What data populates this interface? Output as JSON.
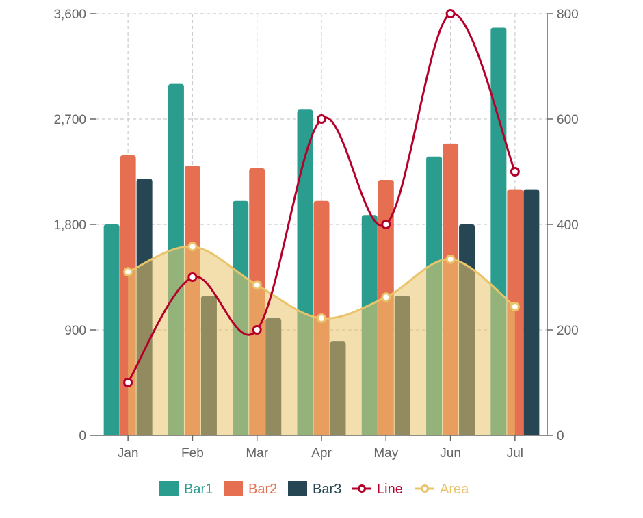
{
  "chart_data": {
    "type": "bar",
    "categories": [
      "Jan",
      "Feb",
      "Mar",
      "Apr",
      "May",
      "Jun",
      "Jul"
    ],
    "y_left": {
      "ticks": [
        0,
        900,
        1800,
        2700,
        3600
      ],
      "tick_labels": [
        "0",
        "900",
        "1,800",
        "2,700",
        "3,600"
      ],
      "min": 0,
      "max": 3600
    },
    "y_right": {
      "ticks": [
        0,
        200,
        400,
        600,
        800
      ],
      "tick_labels": [
        "0",
        "200",
        "400",
        "600",
        "800"
      ],
      "min": 0,
      "max": 800
    },
    "grid": true,
    "legend_position": "bottom",
    "series": [
      {
        "name": "Bar1",
        "kind": "bar",
        "axis": "left",
        "color": "#2a9d8f",
        "values": [
          1800,
          3000,
          2000,
          2780,
          1880,
          2380,
          3480
        ]
      },
      {
        "name": "Bar2",
        "kind": "bar",
        "axis": "left",
        "color": "#e76f51",
        "values": [
          2390,
          2300,
          2280,
          2000,
          2180,
          2490,
          2100
        ]
      },
      {
        "name": "Bar3",
        "kind": "bar",
        "axis": "left",
        "color": "#264653",
        "values": [
          2190,
          1190,
          1000,
          800,
          1190,
          1800,
          2100
        ]
      },
      {
        "name": "Line",
        "kind": "line",
        "axis": "right",
        "color": "#b5002a",
        "values": [
          100,
          300,
          200,
          600,
          400,
          800,
          500
        ]
      },
      {
        "name": "Area",
        "kind": "area",
        "axis": "right",
        "color": "#e9c46a",
        "values": [
          310,
          358,
          285,
          222,
          262,
          334,
          244
        ]
      }
    ]
  }
}
